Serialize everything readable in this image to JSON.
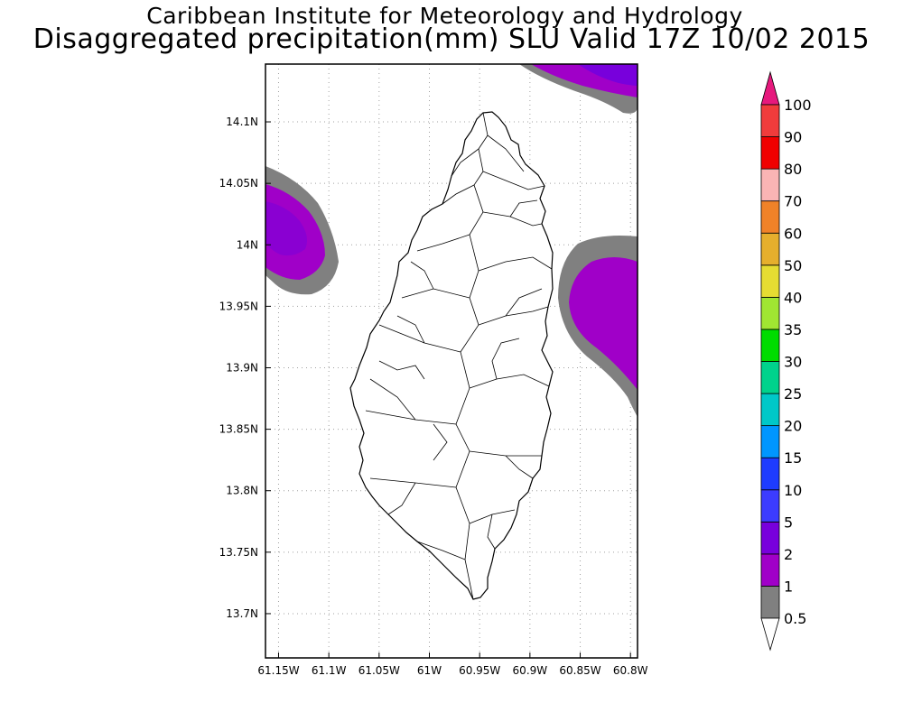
{
  "header": {
    "title": "Caribbean Institute for Meteorology and Hydrology",
    "subtitle": "Disaggregated precipitation(mm) SLU Valid 17Z 10/02 2015"
  },
  "map": {
    "lon_range": [
      -61.163,
      -60.793
    ],
    "lat_range": [
      13.664,
      14.147
    ],
    "x_ticks": [
      {
        "value": -61.15,
        "label": "61.15W"
      },
      {
        "value": -61.1,
        "label": "61.1W"
      },
      {
        "value": -61.05,
        "label": "61.05W"
      },
      {
        "value": -61.0,
        "label": "61W"
      },
      {
        "value": -60.95,
        "label": "60.95W"
      },
      {
        "value": -60.9,
        "label": "60.9W"
      },
      {
        "value": -60.85,
        "label": "60.85W"
      },
      {
        "value": -60.8,
        "label": "60.8W"
      }
    ],
    "y_ticks": [
      {
        "value": 14.1,
        "label": "14.1N"
      },
      {
        "value": 14.05,
        "label": "14.05N"
      },
      {
        "value": 14.0,
        "label": "14N"
      },
      {
        "value": 13.95,
        "label": "13.95N"
      },
      {
        "value": 13.9,
        "label": "13.9N"
      },
      {
        "value": 13.85,
        "label": "13.85N"
      },
      {
        "value": 13.8,
        "label": "13.8N"
      },
      {
        "value": 13.75,
        "label": "13.75N"
      },
      {
        "value": 13.7,
        "label": "13.7N"
      }
    ],
    "grid": true,
    "colors": {
      "land_fill": "#ffffff",
      "coast_stroke": "#000000",
      "grid_stroke": "#a0a0a0",
      "shade_0_5_to_1": "#808080",
      "shade_1_to_2": "#a000c8",
      "shade_2_to_5": "#7800dc"
    }
  },
  "legend": {
    "position": "right",
    "levels": [
      {
        "label": "0.5",
        "color": "#ffffff"
      },
      {
        "label": "1",
        "color": "#808080"
      },
      {
        "label": "2",
        "color": "#a000c8"
      },
      {
        "label": "5",
        "color": "#7800dc"
      },
      {
        "label": "10",
        "color": "#3c3cff"
      },
      {
        "label": "15",
        "color": "#1e3cff"
      },
      {
        "label": "20",
        "color": "#0096ff"
      },
      {
        "label": "25",
        "color": "#00c8c8"
      },
      {
        "label": "30",
        "color": "#00d28c"
      },
      {
        "label": "35",
        "color": "#00dc00"
      },
      {
        "label": "40",
        "color": "#a0e632"
      },
      {
        "label": "50",
        "color": "#e6dc32"
      },
      {
        "label": "60",
        "color": "#e6af2d"
      },
      {
        "label": "70",
        "color": "#f08228"
      },
      {
        "label": "80",
        "color": "#fab4b4"
      },
      {
        "label": "90",
        "color": "#f00000"
      },
      {
        "label": "100",
        "color": "#f03c3c"
      }
    ],
    "top_arrow_color": "#e6197d",
    "bottom_arrow_color": "#ffffff"
  }
}
